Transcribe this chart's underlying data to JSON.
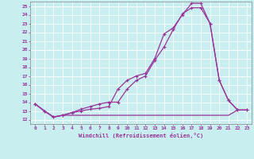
{
  "bg_color": "#c8eef0",
  "line_color": "#993399",
  "grid_color": "#aadddd",
  "xlim": [
    -0.5,
    23.5
  ],
  "ylim": [
    11.5,
    25.5
  ],
  "yticks": [
    12,
    13,
    14,
    15,
    16,
    17,
    18,
    19,
    20,
    21,
    22,
    23,
    24,
    25
  ],
  "xticks": [
    0,
    1,
    2,
    3,
    4,
    5,
    6,
    7,
    8,
    9,
    10,
    11,
    12,
    13,
    14,
    15,
    16,
    17,
    18,
    19,
    20,
    21,
    22,
    23
  ],
  "xlabel": "Windchill (Refroidissement éolien,°C)",
  "curve1_x": [
    0,
    1,
    2,
    3,
    4,
    5,
    6,
    7,
    8,
    9,
    10,
    11,
    12,
    13,
    14,
    15,
    16,
    17,
    18,
    19,
    20,
    21,
    22,
    23
  ],
  "curve1_y": [
    13.8,
    13.0,
    12.3,
    12.5,
    12.8,
    13.0,
    13.2,
    13.3,
    13.5,
    15.5,
    16.5,
    17.0,
    17.3,
    19.0,
    21.8,
    22.5,
    24.0,
    25.3,
    25.3,
    23.0,
    16.5,
    14.2,
    13.1,
    13.1
  ],
  "curve2_x": [
    0,
    1,
    2,
    3,
    4,
    5,
    6,
    7,
    8,
    9,
    10,
    11,
    12,
    13,
    14,
    15,
    16,
    17,
    18,
    19,
    20,
    21,
    22,
    23
  ],
  "curve2_y": [
    13.8,
    13.0,
    12.3,
    12.5,
    12.8,
    13.2,
    13.5,
    13.8,
    14.0,
    14.0,
    15.5,
    16.5,
    17.0,
    18.8,
    20.3,
    22.3,
    24.1,
    24.8,
    24.8,
    23.0,
    16.5,
    14.2,
    13.1,
    13.1
  ],
  "curve3_x": [
    0,
    1,
    2,
    3,
    4,
    5,
    6,
    7,
    8,
    9,
    10,
    11,
    12,
    13,
    14,
    15,
    16,
    17,
    18,
    19,
    20,
    21,
    22,
    23
  ],
  "curve3_y": [
    13.8,
    13.0,
    12.3,
    12.5,
    12.5,
    12.5,
    12.5,
    12.5,
    12.5,
    12.5,
    12.5,
    12.5,
    12.5,
    12.5,
    12.5,
    12.5,
    12.5,
    12.5,
    12.5,
    12.5,
    12.5,
    12.5,
    13.1,
    13.1
  ]
}
